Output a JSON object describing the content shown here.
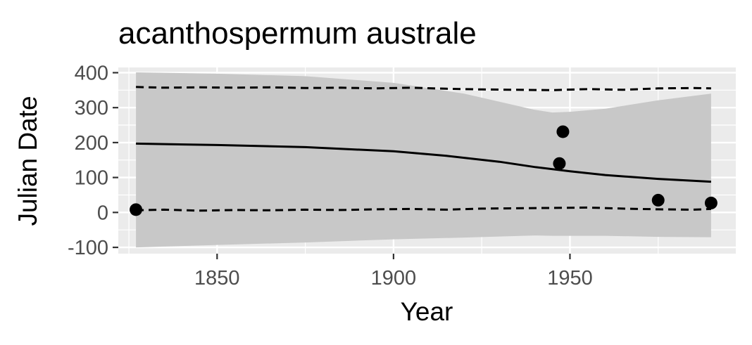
{
  "chart_data": {
    "type": "scatter",
    "title": "acanthospermum australe",
    "xlabel": "Year",
    "ylabel": "Julian Date",
    "xlim": [
      1822,
      1997
    ],
    "ylim": [
      -118,
      415
    ],
    "x_ticks": [
      1850,
      1900,
      1950
    ],
    "x_tick_labels": [
      "1850",
      "1900",
      "1950"
    ],
    "y_ticks": [
      -100,
      0,
      100,
      200,
      300,
      400
    ],
    "y_tick_labels": [
      "-100",
      "0",
      "100",
      "200",
      "300",
      "400"
    ],
    "grid": true,
    "legend": "none",
    "colors": {
      "panel_background": "#ebebeb",
      "gridline": "#ffffff",
      "ribbon": "#c8c8c8",
      "line": "#000000",
      "points": "#000000",
      "tick_label": "#4d4d4d"
    },
    "points": [
      {
        "x": 1827,
        "y": 8
      },
      {
        "x": 1947,
        "y": 140
      },
      {
        "x": 1948,
        "y": 231
      },
      {
        "x": 1975,
        "y": 35
      },
      {
        "x": 1990,
        "y": 27
      }
    ],
    "fit_line": {
      "x": [
        1827,
        1850,
        1875,
        1900,
        1915,
        1930,
        1940,
        1950,
        1960,
        1975,
        1990
      ],
      "y": [
        197,
        193,
        187,
        175,
        162,
        145,
        130,
        118,
        107,
        96,
        88
      ]
    },
    "ribbon": {
      "x": [
        1827,
        1850,
        1875,
        1900,
        1920,
        1930,
        1940,
        1945,
        1950,
        1960,
        1975,
        1990
      ],
      "upper": [
        401,
        397,
        390,
        371,
        340,
        317,
        294,
        286,
        288,
        297,
        321,
        340
      ],
      "lower": [
        -100,
        -93,
        -86,
        -77,
        -72,
        -69,
        -66,
        -67,
        -67,
        -67,
        -70,
        -71
      ]
    },
    "upper_dashed": {
      "x": [
        1827,
        1835,
        1845,
        1855,
        1865,
        1875,
        1885,
        1895,
        1905,
        1915,
        1925,
        1935,
        1945,
        1955,
        1965,
        1975,
        1985,
        1990
      ],
      "y": [
        359,
        357,
        358,
        357,
        358,
        356,
        357,
        355,
        357,
        354,
        352,
        351,
        350,
        353,
        351,
        355,
        356,
        355
      ]
    },
    "lower_dashed": {
      "x": [
        1827,
        1835,
        1845,
        1855,
        1865,
        1875,
        1885,
        1895,
        1905,
        1915,
        1925,
        1935,
        1945,
        1955,
        1965,
        1975,
        1985,
        1990
      ],
      "y": [
        6,
        8,
        5,
        7,
        6,
        8,
        7,
        9,
        10,
        8,
        11,
        12,
        13,
        14,
        11,
        9,
        8,
        10
      ]
    }
  }
}
